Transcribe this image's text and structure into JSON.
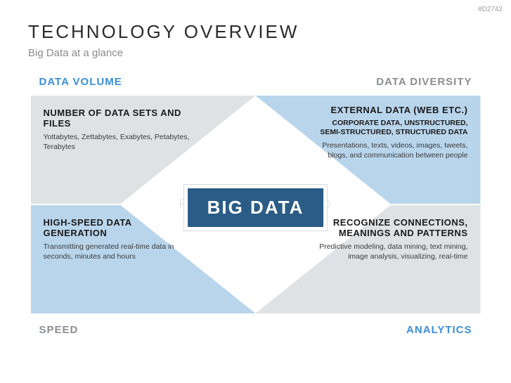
{
  "ref_code": "#D2742",
  "title": "TECHNOLOGY OVERVIEW",
  "subtitle": "Big Data at a glance",
  "watermark": "PRESENTATIONLOAD",
  "colors": {
    "label_blue": "#3b8ed8",
    "label_grey": "#8a8f94",
    "panel_grey": "#dfe2e4",
    "panel_blue": "#b9d5ec",
    "center_fill": "#2a5c86",
    "center_text": "#ffffff",
    "title_color": "#2b2b2b",
    "subtitle_color": "#8b8b8b"
  },
  "center": {
    "label": "BIG DATA"
  },
  "corners": {
    "tl": {
      "label": "Data Volume",
      "color_key": "label_blue"
    },
    "tr": {
      "label": "Data Diversity",
      "color_key": "label_grey"
    },
    "bl": {
      "label": "Speed",
      "color_key": "label_grey"
    },
    "br": {
      "label": "Analytics",
      "color_key": "label_blue"
    }
  },
  "quadrants": {
    "tl": {
      "bg_key": "panel_grey",
      "heading": "Number of data sets and files",
      "subheading": "",
      "body": "Yottabytes, Zettabytes, Exabytes, Petabytes, Terabytes"
    },
    "tr": {
      "bg_key": "panel_blue",
      "heading": "External data  (web etc.)",
      "subheading": "Corporate data, unstructured, semi-structured, structured data",
      "body": "Presentations, texts, videos, images, tweets, blogs, and communication between people"
    },
    "bl": {
      "bg_key": "panel_blue",
      "heading": "High-speed data generation",
      "subheading": "",
      "body": "Transmitting generated real-time data in seconds, minutes and hours"
    },
    "br": {
      "bg_key": "panel_grey",
      "heading": "Recognize connections, meanings and patterns",
      "subheading": "",
      "body": "Predictive modeling, data mining, text mining, image analysis, visualizing, real-time"
    }
  }
}
